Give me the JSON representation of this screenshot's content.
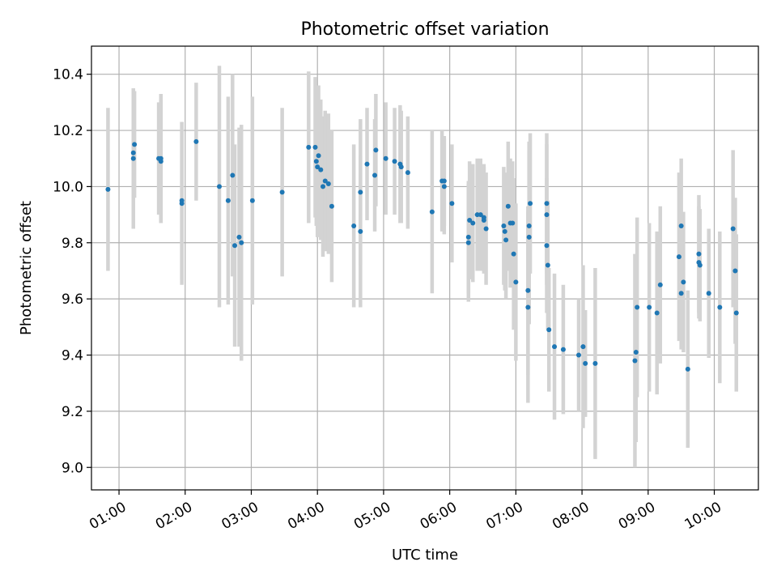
{
  "chart_data": {
    "type": "scatter",
    "title": "Photometric offset variation",
    "xlabel": "UTC time",
    "ylabel": "Photometric offset",
    "x_is_time": true,
    "xlim": [
      "00:35",
      "10:40"
    ],
    "ylim": [
      8.92,
      10.5
    ],
    "xticks": [
      "01:00",
      "02:00",
      "03:00",
      "04:00",
      "05:00",
      "06:00",
      "07:00",
      "08:00",
      "09:00",
      "10:00"
    ],
    "yticks": [
      "9.0",
      "9.2",
      "9.4",
      "9.6",
      "9.8",
      "10.0",
      "10.2",
      "10.4"
    ],
    "grid": true,
    "legend": "none",
    "colors": {
      "point": "#1f77b4",
      "error_bar": "#d3d3d3",
      "grid": "#b0b0b0"
    },
    "series": [
      {
        "x": [
          "00:50",
          "01:13",
          "01:13",
          "01:14",
          "01:36",
          "01:38",
          "01:38",
          "01:57",
          "01:57",
          "02:10",
          "02:31",
          "02:39",
          "02:43",
          "02:45",
          "02:49",
          "02:51",
          "03:01",
          "03:28",
          "03:52",
          "03:58",
          "03:59",
          "04:00",
          "04:01",
          "04:03",
          "04:05",
          "04:07",
          "04:10",
          "04:13",
          "04:33",
          "04:39",
          "04:39",
          "04:45",
          "04:52",
          "04:53",
          "05:02",
          "05:10",
          "05:15",
          "05:16",
          "05:22",
          "05:44",
          "05:53",
          "05:55",
          "05:55",
          "06:02",
          "06:17",
          "06:17",
          "06:18",
          "06:21",
          "06:25",
          "06:28",
          "06:31",
          "06:31",
          "06:33",
          "06:49",
          "06:50",
          "06:51",
          "06:53",
          "06:55",
          "06:57",
          "06:58",
          "07:00",
          "07:11",
          "07:11",
          "07:12",
          "07:12",
          "07:13",
          "07:28",
          "07:28",
          "07:28",
          "07:29",
          "07:30",
          "07:35",
          "07:43",
          "07:57",
          "08:01",
          "08:03",
          "08:12",
          "08:48",
          "08:49",
          "08:50",
          "09:01",
          "09:08",
          "09:11",
          "09:28",
          "09:30",
          "09:30",
          "09:32",
          "09:36",
          "09:46",
          "09:46",
          "09:47",
          "09:55",
          "10:05",
          "10:17",
          "10:19",
          "10:20"
        ],
        "y": [
          9.99,
          10.12,
          10.1,
          10.15,
          10.1,
          10.1,
          10.09,
          9.94,
          9.95,
          10.16,
          10.0,
          9.95,
          10.04,
          9.79,
          9.82,
          9.8,
          9.95,
          9.98,
          10.14,
          10.14,
          10.09,
          10.07,
          10.11,
          10.06,
          10.0,
          10.02,
          10.01,
          9.93,
          9.86,
          9.84,
          9.98,
          10.08,
          10.04,
          10.13,
          10.1,
          10.09,
          10.08,
          10.07,
          10.05,
          9.91,
          10.02,
          10.02,
          10.0,
          9.94,
          9.82,
          9.8,
          9.88,
          9.87,
          9.9,
          9.9,
          9.89,
          9.88,
          9.85,
          9.86,
          9.84,
          9.81,
          9.93,
          9.87,
          9.87,
          9.76,
          9.66,
          9.63,
          9.57,
          9.82,
          9.86,
          9.94,
          9.94,
          9.9,
          9.79,
          9.72,
          9.49,
          9.43,
          9.42,
          9.4,
          9.43,
          9.37,
          9.37,
          9.38,
          9.41,
          9.57,
          9.57,
          9.55,
          9.65,
          9.75,
          9.86,
          9.62,
          9.66,
          9.35,
          9.76,
          9.73,
          9.72,
          9.62,
          9.57,
          9.85,
          9.7,
          9.55
        ],
        "yerr": [
          0.29,
          0.23,
          0.25,
          0.19,
          0.2,
          0.23,
          0.22,
          0.29,
          0.28,
          0.21,
          0.43,
          0.37,
          0.36,
          0.36,
          0.39,
          0.42,
          0.37,
          0.3,
          0.27,
          0.25,
          0.23,
          0.25,
          0.25,
          0.25,
          0.25,
          0.25,
          0.25,
          0.27,
          0.29,
          0.27,
          0.26,
          0.2,
          0.2,
          0.2,
          0.2,
          0.19,
          0.21,
          0.2,
          0.2,
          0.29,
          0.18,
          0.16,
          0.17,
          0.21,
          0.2,
          0.21,
          0.21,
          0.21,
          0.2,
          0.2,
          0.19,
          0.19,
          0.2,
          0.21,
          0.21,
          0.21,
          0.23,
          0.23,
          0.22,
          0.27,
          0.28,
          0.3,
          0.34,
          0.31,
          0.3,
          0.25,
          0.25,
          0.25,
          0.24,
          0.23,
          0.22,
          0.26,
          0.23,
          0.2,
          0.29,
          0.19,
          0.34,
          0.38,
          0.32,
          0.32,
          0.3,
          0.29,
          0.28,
          0.3,
          0.24,
          0.2,
          0.25,
          0.28,
          0.21,
          0.2,
          0.2,
          0.23,
          0.27,
          0.28,
          0.26,
          0.28
        ]
      }
    ]
  }
}
